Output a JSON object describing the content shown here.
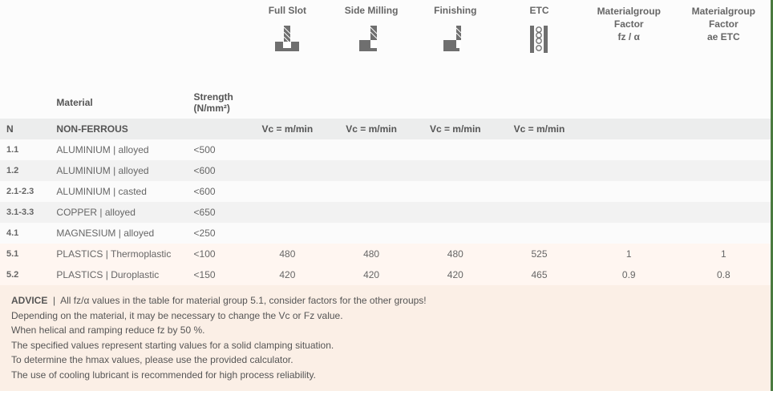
{
  "columns": {
    "material": "Material",
    "strength": "Strength (N/mm²)",
    "ops": [
      {
        "label": "Full Slot",
        "sub": "Vc = m/min",
        "icon": "fullslot"
      },
      {
        "label": "Side Milling",
        "sub": "Vc = m/min",
        "icon": "sidemill"
      },
      {
        "label": "Finishing",
        "sub": "Vc = m/min",
        "icon": "finishing"
      },
      {
        "label": "ETC",
        "sub": "Vc = m/min",
        "icon": "etc"
      }
    ],
    "mgf1": {
      "l1": "Materialgroup",
      "l2": "Factor",
      "l3": "fz / α"
    },
    "mgf2": {
      "l1": "Materialgroup",
      "l2": "Factor",
      "l3": "ae ETC"
    }
  },
  "grouprow": {
    "code": "N",
    "name": "NON-FERROUS"
  },
  "rows": [
    {
      "code": "1.1",
      "mat": "ALUMINIUM |  alloyed",
      "str": "<500",
      "v": [
        "",
        "",
        "",
        "",
        "",
        ""
      ],
      "pl": false
    },
    {
      "code": "1.2",
      "mat": "ALUMINIUM | alloyed",
      "str": "<600",
      "v": [
        "",
        "",
        "",
        "",
        "",
        ""
      ],
      "pl": false
    },
    {
      "code": "2.1-2.3",
      "mat": "ALUMINIUM | casted",
      "str": "<600",
      "v": [
        "",
        "",
        "",
        "",
        "",
        ""
      ],
      "pl": false
    },
    {
      "code": "3.1-3.3",
      "mat": "COPPER | alloyed",
      "str": "<650",
      "v": [
        "",
        "",
        "",
        "",
        "",
        ""
      ],
      "pl": false
    },
    {
      "code": "4.1",
      "mat": "MAGNESIUM | alloyed",
      "str": "<250",
      "v": [
        "",
        "",
        "",
        "",
        "",
        ""
      ],
      "pl": false
    },
    {
      "code": "5.1",
      "mat": "PLASTICS | Thermoplastic",
      "str": "<100",
      "v": [
        "480",
        "480",
        "480",
        "525",
        "1",
        "1"
      ],
      "pl": true
    },
    {
      "code": "5.2",
      "mat": "PLASTICS | Duroplastic",
      "str": "<150",
      "v": [
        "420",
        "420",
        "420",
        "465",
        "0.9",
        "0.8"
      ],
      "pl": true
    }
  ],
  "advice": {
    "label": "ADVICE",
    "lines": [
      "All fz/α values in the table for material group 5.1, consider factors for the other groups!",
      "Depending on the material, it may be necessary to change the Vc or Fz value.",
      "When helical and ramping reduce fz by 50 %.",
      "The specified values represent starting values for a solid clamping situation.",
      "To determine the hmax values, please use the provided calculator.",
      "The use of cooling lubricant is recommended for high process reliability."
    ]
  },
  "style": {
    "icon_fill": "#6f6f6f",
    "icon_hatch": "#ffffff"
  }
}
